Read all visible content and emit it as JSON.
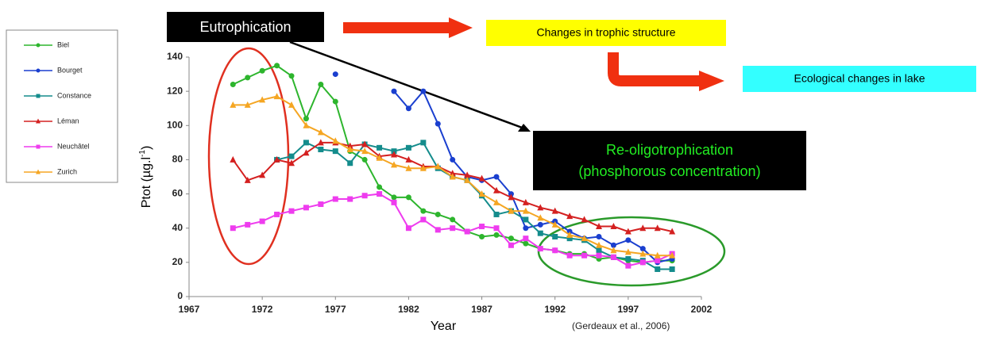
{
  "chart_data": {
    "type": "line",
    "xlabel": "Year",
    "ylabel": {
      "text": "Ptot (µg.l",
      "sup": "-1",
      "after": ")"
    },
    "xlim": [
      1967,
      2002
    ],
    "xticks": [
      1967,
      1972,
      1977,
      1982,
      1987,
      1992,
      1997,
      2002
    ],
    "ylim": [
      0,
      140
    ],
    "yticks": [
      0,
      20,
      40,
      60,
      80,
      100,
      120,
      140
    ],
    "legend": "left",
    "x": [
      1970,
      1971,
      1972,
      1973,
      1974,
      1975,
      1976,
      1977,
      1978,
      1979,
      1980,
      1981,
      1982,
      1983,
      1984,
      1985,
      1986,
      1987,
      1988,
      1989,
      1990,
      1991,
      1992,
      1993,
      1994,
      1995,
      1996,
      1997,
      1998,
      1999,
      2000
    ],
    "series": [
      {
        "name": "Biel",
        "color": "#2db52d",
        "marker": "circle",
        "values": [
          124,
          128,
          132,
          135,
          129,
          104,
          124,
          114,
          85,
          80,
          64,
          58,
          58,
          50,
          48,
          45,
          38,
          35,
          36,
          34,
          31,
          28,
          27,
          25,
          25,
          22,
          23,
          21,
          20,
          21,
          21
        ]
      },
      {
        "name": "Bourget",
        "color": "#1a3fcf",
        "marker": "circle",
        "values": [
          null,
          null,
          null,
          80,
          null,
          null,
          null,
          130,
          null,
          null,
          null,
          120,
          110,
          120,
          101,
          80,
          70,
          68,
          70,
          60,
          40,
          42,
          44,
          38,
          34,
          35,
          30,
          33,
          28,
          20,
          22
        ]
      },
      {
        "name": "Constance",
        "color": "#148c8c",
        "marker": "square",
        "values": [
          null,
          null,
          null,
          80,
          82,
          90,
          86,
          85,
          78,
          89,
          87,
          85,
          87,
          90,
          75,
          70,
          68,
          59,
          48,
          50,
          45,
          37,
          35,
          34,
          33,
          27,
          23,
          22,
          21,
          16,
          16
        ]
      },
      {
        "name": "Léman",
        "color": "#d42020",
        "marker": "triangle",
        "values": [
          80,
          68,
          71,
          80,
          78,
          84,
          90,
          90,
          88,
          89,
          82,
          83,
          80,
          76,
          76,
          72,
          71,
          69,
          62,
          58,
          55,
          52,
          50,
          47,
          45,
          41,
          41,
          38,
          40,
          40,
          38
        ]
      },
      {
        "name": "Neuchâtel",
        "color": "#ee3cee",
        "marker": "square",
        "values": [
          40,
          42,
          44,
          48,
          50,
          52,
          54,
          57,
          57,
          59,
          60,
          55,
          40,
          45,
          39,
          40,
          38,
          41,
          40,
          30,
          34,
          28,
          27,
          24,
          24,
          24,
          23,
          18,
          20,
          21,
          25
        ]
      },
      {
        "name": "Zurich",
        "color": "#f5a623",
        "marker": "triangle",
        "values": [
          112,
          112,
          115,
          117,
          112,
          100,
          96,
          91,
          86,
          85,
          81,
          77,
          75,
          75,
          76,
          70,
          68,
          60,
          55,
          50,
          50,
          46,
          42,
          36,
          34,
          30,
          27,
          26,
          25,
          24,
          24
        ]
      }
    ],
    "annotations": {
      "eutrophication": "Eutrophication",
      "trophic": "Changes in trophic structure",
      "ecological": "Ecological changes in lake",
      "reoligo": [
        "Re-oligotrophication",
        "(phosphorous concentration)"
      ],
      "source": "(Gerdeaux et al., 2006)"
    }
  }
}
